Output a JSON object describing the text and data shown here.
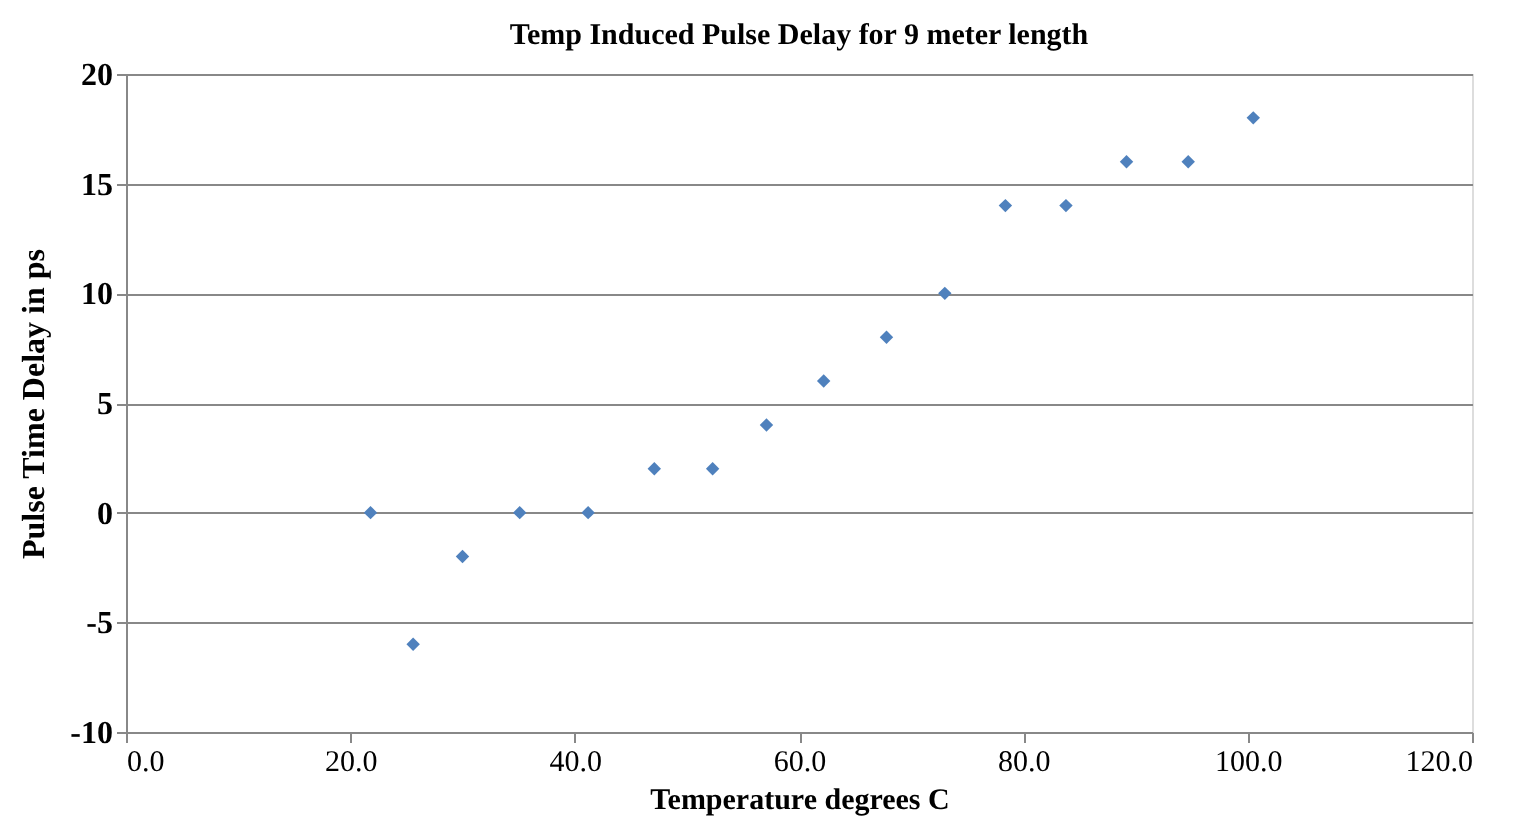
{
  "chart_data": {
    "type": "scatter",
    "title": "Temp Induced Pulse Delay for 9 meter length",
    "xlabel": "Temperature degrees C",
    "ylabel": "Pulse Time Delay in ps",
    "x": [
      21.8,
      25.6,
      30.0,
      35.1,
      41.2,
      47.1,
      52.3,
      57.1,
      62.2,
      67.8,
      73.0,
      78.4,
      83.8,
      89.2,
      94.7,
      100.5
    ],
    "series": [
      {
        "color": "#4f81bd",
        "values": [
          0,
          -6,
          -2,
          0,
          0,
          2,
          2,
          4,
          6,
          8,
          10,
          14,
          14,
          16,
          16,
          18
        ]
      }
    ],
    "xlim": [
      0,
      120
    ],
    "ylim": [
      -10,
      20
    ],
    "xticks": [
      {
        "value": 0,
        "label": "0.0"
      },
      {
        "value": 20,
        "label": "20.0"
      },
      {
        "value": 40,
        "label": "40.0"
      },
      {
        "value": 60,
        "label": "60.0"
      },
      {
        "value": 80,
        "label": "80.0"
      },
      {
        "value": 100,
        "label": "100.0"
      },
      {
        "value": 120,
        "label": "120.0"
      }
    ],
    "yticks": [
      -10,
      -5,
      0,
      5,
      10,
      15,
      20
    ],
    "grid": "y",
    "marker": "diamond"
  }
}
